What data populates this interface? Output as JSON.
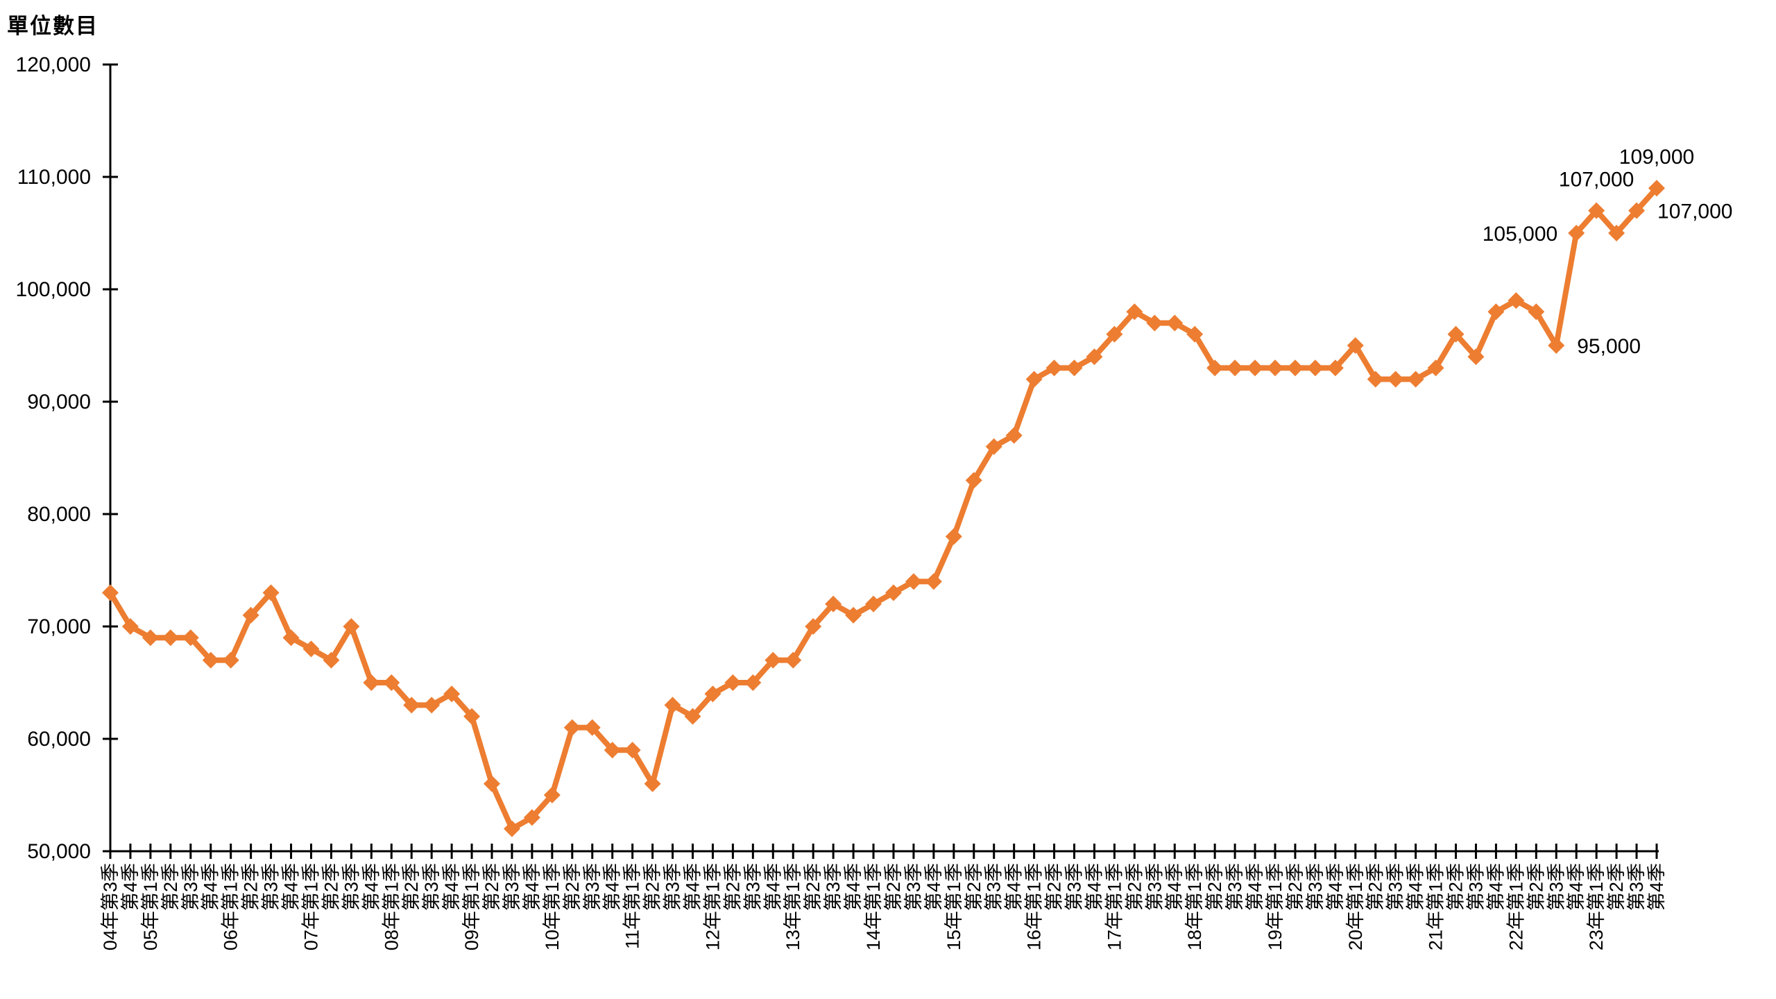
{
  "page": {
    "background_color": "#ffffff"
  },
  "chart_data": {
    "type": "line",
    "title": "",
    "ylabel": "單位數目",
    "xlabel": "",
    "ylim": [
      50000,
      120000
    ],
    "y_tick_step": 10000,
    "grid": false,
    "legend": "none",
    "line_color": "#ED7D31",
    "marker": "diamond",
    "axis_color": "#000000",
    "text_color": "#000000",
    "y_ticks": [
      {
        "value": 50000,
        "label": "50,000"
      },
      {
        "value": 60000,
        "label": "60,000"
      },
      {
        "value": 70000,
        "label": "70,000"
      },
      {
        "value": 80000,
        "label": "80,000"
      },
      {
        "value": 90000,
        "label": "90,000"
      },
      {
        "value": 100000,
        "label": "100,000"
      },
      {
        "value": 110000,
        "label": "110,000"
      },
      {
        "value": 120000,
        "label": "120,000"
      }
    ],
    "categories": [
      "04年第3季",
      "第4季",
      "05年第1季",
      "第2季",
      "第3季",
      "第4季",
      "06年第1季",
      "第2季",
      "第3季",
      "第4季",
      "07年第1季",
      "第2季",
      "第3季",
      "第4季",
      "08年第1季",
      "第2季",
      "第3季",
      "第4季",
      "09年第1季",
      "第2季",
      "第3季",
      "第4季",
      "10年第1季",
      "第2季",
      "第3季",
      "第4季",
      "11年第1季",
      "第2季",
      "第3季",
      "第4季",
      "12年第1季",
      "第2季",
      "第3季",
      "第4季",
      "13年第1季",
      "第2季",
      "第3季",
      "第4季",
      "14年第1季",
      "第2季",
      "第3季",
      "第4季",
      "15年第1季",
      "第2季",
      "第3季",
      "第4季",
      "16年第1季",
      "第2季",
      "第3季",
      "第4季",
      "17年第1季",
      "第2季",
      "第3季",
      "第4季",
      "18年第1季",
      "第2季",
      "第3季",
      "第4季",
      "19年第1季",
      "第2季",
      "第3季",
      "第4季",
      "20年第1季",
      "第2季",
      "第3季",
      "第4季",
      "21年第1季",
      "第2季",
      "第3季",
      "第4季",
      "22年第1季",
      "第2季",
      "第3季",
      "第4季",
      "23年第1季",
      "第2季",
      "第3季",
      "第4季"
    ],
    "values": [
      73000,
      70000,
      69000,
      69000,
      69000,
      67000,
      67000,
      71000,
      73000,
      69000,
      68000,
      67000,
      70000,
      65000,
      65000,
      63000,
      63000,
      64000,
      62000,
      56000,
      52000,
      53000,
      55000,
      61000,
      61000,
      59000,
      59000,
      56000,
      63000,
      62000,
      64000,
      65000,
      65000,
      67000,
      67000,
      70000,
      72000,
      71000,
      72000,
      73000,
      74000,
      74000,
      78000,
      83000,
      86000,
      87000,
      92000,
      93000,
      93000,
      94000,
      96000,
      98000,
      97000,
      97000,
      96000,
      93000,
      93000,
      93000,
      93000,
      93000,
      93000,
      93000,
      95000,
      92000,
      92000,
      92000,
      93000,
      96000,
      94000,
      98000,
      99000,
      98000,
      95000,
      105000,
      107000,
      105000,
      107000,
      109000
    ],
    "annotations": [
      {
        "index": 72,
        "text": "95,000",
        "placement": "right"
      },
      {
        "index": 73,
        "text": "105,000",
        "placement": "left"
      },
      {
        "index": 74,
        "text": "107,000",
        "placement": "above"
      },
      {
        "index": 76,
        "text": "107,000",
        "placement": "right"
      },
      {
        "index": 77,
        "text": "109,000",
        "placement": "above"
      }
    ]
  }
}
